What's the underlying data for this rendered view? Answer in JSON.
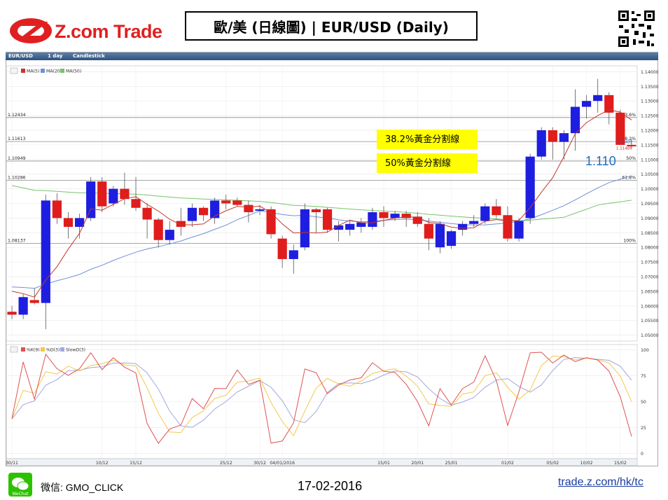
{
  "header": {
    "logo_text": "Z.com Trade",
    "title": "歐/美 (日線圖) | EUR/USD (Daily)"
  },
  "chart_toolbar": {
    "symbol": "EUR/USD",
    "interval": "1 day",
    "style": "Candlestick"
  },
  "colors": {
    "up": "#1e1ee0",
    "down": "#e01c1c",
    "ma5": "#c0392b",
    "ma20": "#6f8fd8",
    "ma50": "#79c26b",
    "k": "#e05050",
    "d": "#f2c94c",
    "slow_d": "#a0a8e0",
    "highlight": "#ffff00"
  },
  "annotations": {
    "fib382": "38.2%黃金分割線",
    "fib50": "50%黃金分割線",
    "last_price": "1.110"
  },
  "footer": {
    "wechat_label": "WeChat",
    "wechat_id": "微信: GMO_CLICK",
    "date": "17-02-2016",
    "url": "trade.z.com/hk/tc"
  },
  "chart_data": {
    "type": "candlestick",
    "y_ticks": [
      "1.14000",
      "1.13500",
      "1.13000",
      "1.12500",
      "1.12000",
      "1.11500",
      "1.11000",
      "1.10500",
      "1.10000",
      "1.09500",
      "1.09000",
      "1.08500",
      "1.08000",
      "1.07500",
      "1.07000",
      "1.06500",
      "1.06000",
      "1.05500",
      "1.05000"
    ],
    "ylim": [
      1.048,
      1.142
    ],
    "x_labels": [
      "30/11",
      "10/12",
      "15/12",
      "25/12",
      "30/12",
      "04/01/2016",
      "15/01",
      "20/01",
      "25/01",
      "01/02",
      "05/02",
      "10/02",
      "15/02"
    ],
    "x_label_index": [
      0,
      8,
      11,
      19,
      22,
      24,
      33,
      36,
      39,
      44,
      48,
      51,
      54
    ],
    "n_bars": 56,
    "legend": [
      "MA(5)",
      "MA(20)",
      "MA(50)"
    ],
    "fib_levels": [
      {
        "price": 1.12434,
        "pct": "23.6%"
      },
      {
        "price": 1.11613,
        "pct": "38.2%"
      },
      {
        "price": 1.10949,
        "pct": "50%"
      },
      {
        "price": 1.10286,
        "pct": "61.8%"
      },
      {
        "price": 1.08137,
        "pct": "100%"
      }
    ],
    "price_tags": [
      "1.11489",
      "1.11489"
    ],
    "candles": [
      {
        "o": 1.058,
        "h": 1.06,
        "l": 1.0555,
        "c": 1.057
      },
      {
        "o": 1.057,
        "h": 1.064,
        "l": 1.0555,
        "c": 1.063
      },
      {
        "o": 1.062,
        "h": 1.066,
        "l": 1.0605,
        "c": 1.061
      },
      {
        "o": 1.061,
        "h": 1.098,
        "l": 1.052,
        "c": 1.096
      },
      {
        "o": 1.096,
        "h": 1.0985,
        "l": 1.088,
        "c": 1.09
      },
      {
        "o": 1.09,
        "h": 1.092,
        "l": 1.083,
        "c": 1.087
      },
      {
        "o": 1.087,
        "h": 1.0915,
        "l": 1.083,
        "c": 1.09
      },
      {
        "o": 1.09,
        "h": 1.104,
        "l": 1.089,
        "c": 1.1025
      },
      {
        "o": 1.1025,
        "h": 1.104,
        "l": 1.092,
        "c": 1.094
      },
      {
        "o": 1.095,
        "h": 1.101,
        "l": 1.094,
        "c": 1.1
      },
      {
        "o": 1.1,
        "h": 1.1055,
        "l": 1.0945,
        "c": 1.0965
      },
      {
        "o": 1.0965,
        "h": 1.104,
        "l": 1.0925,
        "c": 1.0935
      },
      {
        "o": 1.0935,
        "h": 1.095,
        "l": 1.083,
        "c": 1.0895
      },
      {
        "o": 1.0895,
        "h": 1.09,
        "l": 1.08,
        "c": 1.0825
      },
      {
        "o": 1.0825,
        "h": 1.089,
        "l": 1.081,
        "c": 1.086
      },
      {
        "o": 1.089,
        "h": 1.0935,
        "l": 1.084,
        "c": 1.087
      },
      {
        "o": 1.089,
        "h": 1.095,
        "l": 1.087,
        "c": 1.0935
      },
      {
        "o": 1.0935,
        "h": 1.094,
        "l": 1.089,
        "c": 1.091
      },
      {
        "o": 1.09,
        "h": 1.097,
        "l": 1.088,
        "c": 1.096
      },
      {
        "o": 1.096,
        "h": 1.098,
        "l": 1.093,
        "c": 1.095
      },
      {
        "o": 1.096,
        "h": 1.097,
        "l": 1.094,
        "c": 1.0945
      },
      {
        "o": 1.0945,
        "h": 1.096,
        "l": 1.0885,
        "c": 1.092
      },
      {
        "o": 1.0925,
        "h": 1.0945,
        "l": 1.091,
        "c": 1.093
      },
      {
        "o": 1.093,
        "h": 1.094,
        "l": 1.083,
        "c": 1.0845
      },
      {
        "o": 1.083,
        "h": 1.084,
        "l": 1.073,
        "c": 1.076
      },
      {
        "o": 1.076,
        "h": 1.081,
        "l": 1.071,
        "c": 1.079
      },
      {
        "o": 1.08,
        "h": 1.095,
        "l": 1.079,
        "c": 1.093
      },
      {
        "o": 1.093,
        "h": 1.0935,
        "l": 1.085,
        "c": 1.092
      },
      {
        "o": 1.093,
        "h": 1.0935,
        "l": 1.085,
        "c": 1.086
      },
      {
        "o": 1.086,
        "h": 1.089,
        "l": 1.082,
        "c": 1.0875
      },
      {
        "o": 1.086,
        "h": 1.089,
        "l": 1.084,
        "c": 1.088
      },
      {
        "o": 1.087,
        "h": 1.09,
        "l": 1.085,
        "c": 1.0885
      },
      {
        "o": 1.087,
        "h": 1.0935,
        "l": 1.086,
        "c": 1.092
      },
      {
        "o": 1.092,
        "h": 1.094,
        "l": 1.087,
        "c": 1.09
      },
      {
        "o": 1.09,
        "h": 1.0925,
        "l": 1.089,
        "c": 1.0915
      },
      {
        "o": 1.0915,
        "h": 1.0925,
        "l": 1.087,
        "c": 1.09
      },
      {
        "o": 1.0905,
        "h": 1.092,
        "l": 1.087,
        "c": 1.088
      },
      {
        "o": 1.088,
        "h": 1.09,
        "l": 1.079,
        "c": 1.083
      },
      {
        "o": 1.08,
        "h": 1.089,
        "l": 1.078,
        "c": 1.088
      },
      {
        "o": 1.0805,
        "h": 1.086,
        "l": 1.0795,
        "c": 1.0855
      },
      {
        "o": 1.086,
        "h": 1.089,
        "l": 1.084,
        "c": 1.088
      },
      {
        "o": 1.088,
        "h": 1.091,
        "l": 1.087,
        "c": 1.089
      },
      {
        "o": 1.089,
        "h": 1.095,
        "l": 1.088,
        "c": 1.094
      },
      {
        "o": 1.094,
        "h": 1.0965,
        "l": 1.09,
        "c": 1.091
      },
      {
        "o": 1.091,
        "h": 1.094,
        "l": 1.082,
        "c": 1.083
      },
      {
        "o": 1.083,
        "h": 1.09,
        "l": 1.082,
        "c": 1.089
      },
      {
        "o": 1.09,
        "h": 1.112,
        "l": 1.088,
        "c": 1.111
      },
      {
        "o": 1.111,
        "h": 1.121,
        "l": 1.11,
        "c": 1.12
      },
      {
        "o": 1.12,
        "h": 1.121,
        "l": 1.11,
        "c": 1.116
      },
      {
        "o": 1.116,
        "h": 1.12,
        "l": 1.11,
        "c": 1.119
      },
      {
        "o": 1.119,
        "h": 1.134,
        "l": 1.113,
        "c": 1.128
      },
      {
        "o": 1.128,
        "h": 1.132,
        "l": 1.124,
        "c": 1.13
      },
      {
        "o": 1.13,
        "h": 1.1375,
        "l": 1.126,
        "c": 1.132
      },
      {
        "o": 1.132,
        "h": 1.133,
        "l": 1.122,
        "c": 1.126
      },
      {
        "o": 1.126,
        "h": 1.127,
        "l": 1.115,
        "c": 1.115
      },
      {
        "o": 1.115,
        "h": 1.117,
        "l": 1.114,
        "c": 1.1145
      }
    ],
    "stoch": {
      "legend": [
        "%K(9)",
        "%D(3)",
        "SlowD(3)"
      ],
      "y_ticks": [
        "100",
        "75",
        "50",
        "25",
        "0"
      ],
      "ylim": [
        -5,
        105
      ]
    }
  }
}
